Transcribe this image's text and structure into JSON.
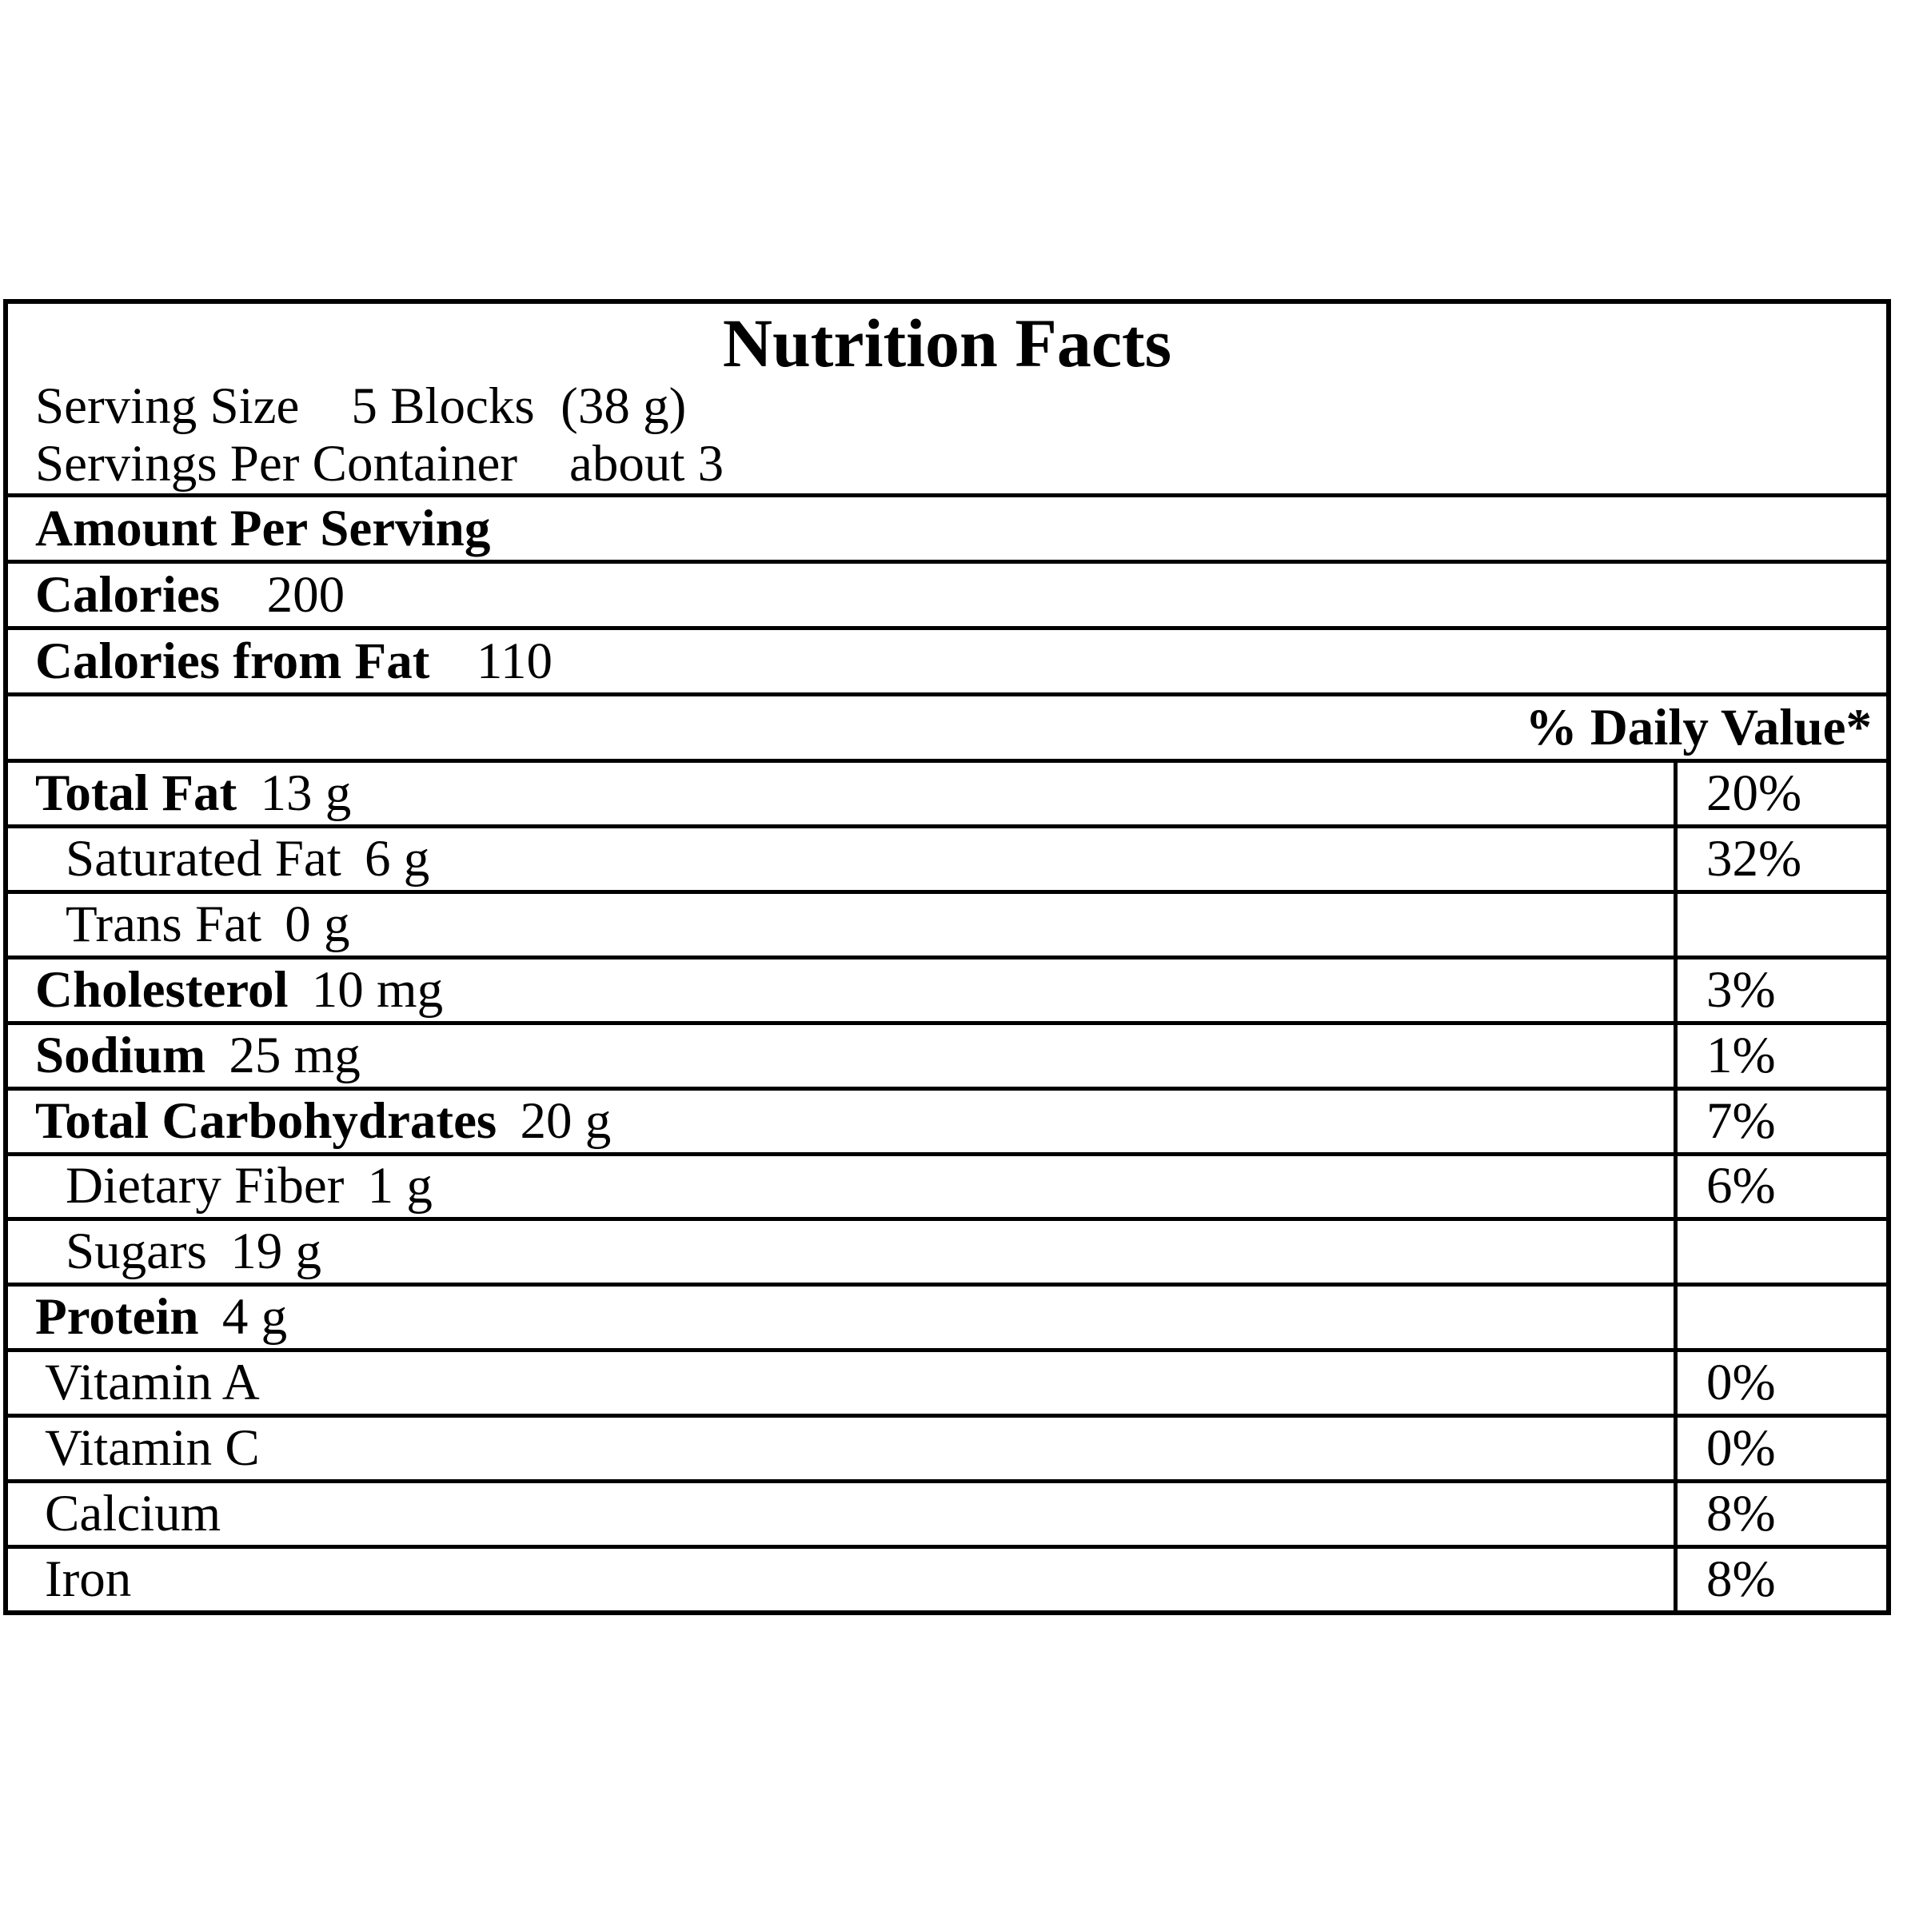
{
  "colors": {
    "text": "#000000",
    "background": "#ffffff",
    "border": "#000000"
  },
  "label": {
    "title": "Nutrition Facts",
    "serving_size": {
      "label": "Serving Size",
      "value": "5 Blocks  (38 g)"
    },
    "servings_per_container": {
      "label": "Servings Per Container",
      "value": "about 3"
    },
    "amount_per_serving": "Amount Per Serving",
    "calories": {
      "label": "Calories",
      "value": "200"
    },
    "calories_from_fat": {
      "label": "Calories from Fat",
      "value": "110"
    },
    "daily_value_header": "% Daily Value*",
    "nutrients": [
      {
        "name": "Total Fat",
        "amount": "13 g",
        "dv": "20%",
        "bold": true,
        "indent": 0
      },
      {
        "name": "Saturated Fat",
        "amount": "6 g",
        "dv": "32%",
        "bold": false,
        "indent": 1
      },
      {
        "name": "Trans Fat",
        "amount": "0 g",
        "dv": "",
        "bold": false,
        "indent": 1
      },
      {
        "name": "Cholesterol",
        "amount": "10 mg",
        "dv": "3%",
        "bold": true,
        "indent": 0
      },
      {
        "name": "Sodium",
        "amount": "25 mg",
        "dv": "1%",
        "bold": true,
        "indent": 0
      },
      {
        "name": "Total Carbohydrates",
        "amount": "20 g",
        "dv": "7%",
        "bold": true,
        "indent": 0
      },
      {
        "name": "Dietary Fiber",
        "amount": "1 g",
        "dv": "6%",
        "bold": false,
        "indent": 1
      },
      {
        "name": "Sugars",
        "amount": "19 g",
        "dv": "",
        "bold": false,
        "indent": 1
      },
      {
        "name": "Protein",
        "amount": "4 g",
        "dv": "",
        "bold": true,
        "indent": 0
      },
      {
        "name": "Vitamin A",
        "amount": "",
        "dv": "0%",
        "bold": false,
        "indent": 2
      },
      {
        "name": "Vitamin C",
        "amount": "",
        "dv": "0%",
        "bold": false,
        "indent": 2
      },
      {
        "name": "Calcium",
        "amount": "",
        "dv": "8%",
        "bold": false,
        "indent": 2
      },
      {
        "name": "Iron",
        "amount": "",
        "dv": "8%",
        "bold": false,
        "indent": 2
      }
    ]
  }
}
